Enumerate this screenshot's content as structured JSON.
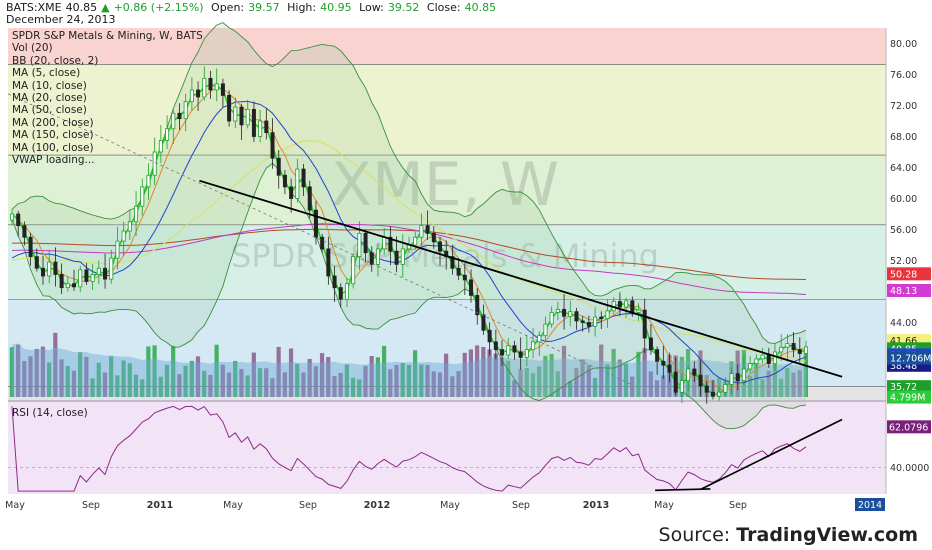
{
  "header": {
    "symbol": "BATS:XME",
    "last": "40.85",
    "change": "+0.86 (+2.15%)",
    "open_label": "Open:",
    "open": "39.57",
    "high_label": "High:",
    "high": "40.95",
    "low_label": "Low:",
    "low": "39.52",
    "close_label": "Close:",
    "close": "40.85",
    "date": "December 24, 2013"
  },
  "legend": [
    "SPDR S&P Metals & Mining, W, BATS",
    "Vol (20)",
    "BB (20, close, 2)",
    "MA (5, close)",
    "MA (10, close)",
    "MA (20, close)",
    "MA (50, close)",
    "MA (200, close)",
    "MA (150, close)",
    "MA (100, close)",
    "VWAP loading..."
  ],
  "watermark": {
    "ticker": "XME, W",
    "name": "SPDR S&P Metals & Mining"
  },
  "rsi_label": "RSI (14, close)",
  "source": {
    "prefix": "Source: ",
    "brand": "TradingView.com"
  },
  "colors": {
    "up": "#1e9e2b",
    "down": "#222222",
    "bb": "#3b8f3b",
    "ma5": "#22cc22",
    "ma20": "#e08a2a",
    "ma50": "#2244cc",
    "ma200": "#b04a2a",
    "ma150": "#c23ac2",
    "ma100": "#d9e060",
    "rsi": "#8a2a8a",
    "trend": "#000000"
  },
  "chart_data": [
    {
      "type": "candlestick",
      "title": "SPDR S&P Metals & Mining, W, BATS",
      "ylim": [
        34,
        82
      ],
      "y_ticks": [
        "80.00",
        "76.00",
        "72.00",
        "68.00",
        "64.00",
        "60.00",
        "56.00",
        "52.00",
        "48.00",
        "44.00"
      ],
      "x_ticks": [
        "May",
        "Sep",
        "2011",
        "May",
        "Sep",
        "2012",
        "May",
        "Sep",
        "2013",
        "May",
        "Sep",
        "2014"
      ],
      "price_bands": [
        {
          "from": 77.3,
          "to": 82,
          "color": "#f8d3d0"
        },
        {
          "from": 65.6,
          "to": 77.3,
          "color": "#edf3d0"
        },
        {
          "from": 56.6,
          "to": 65.6,
          "color": "#dff1d5"
        },
        {
          "from": 47.0,
          "to": 56.6,
          "color": "#d7f0e7"
        },
        {
          "from": 35.72,
          "to": 47.0,
          "color": "#d4e9f3"
        },
        {
          "from": 34,
          "to": 35.72,
          "color": "#e4e4e4"
        }
      ],
      "h_lines": [
        77.3,
        65.6,
        56.6,
        47.0,
        35.72
      ],
      "price_tags": [
        {
          "value": "50.28",
          "y": 50.28,
          "bg": "#e8343a",
          "fg": "#ffffff"
        },
        {
          "value": "48.13",
          "y": 48.13,
          "bg": "#d23bd2",
          "fg": "#ffffff"
        },
        {
          "value": "41.66",
          "y": 41.66,
          "bg": "#f2f27a",
          "fg": "#222222"
        },
        {
          "value": "40.85",
          "y": 40.6,
          "bg": "#1e9e2b",
          "fg": "#ffffff"
        },
        {
          "value": "39.82",
          "y": 39.82,
          "bg": "#2244cc",
          "fg": "#ffffff"
        },
        {
          "value": "38.48",
          "y": 38.48,
          "bg": "#1a1a8a",
          "fg": "#ffffff"
        },
        {
          "value": "35.72",
          "y": 35.72,
          "bg": "#1e9e2b",
          "fg": "#ffffff"
        }
      ],
      "trendline": {
        "from": [
          0.218,
          62.3
        ],
        "to": [
          0.95,
          37.0
        ]
      },
      "dotted_line": {
        "from": [
          0.0,
          73.5
        ],
        "to": [
          0.71,
          36.0
        ]
      },
      "close": [
        58.0,
        56.5,
        55.0,
        52.5,
        51.0,
        50.0,
        51.8,
        50.2,
        48.5,
        49.0,
        48.6,
        50.8,
        49.3,
        50.2,
        51.0,
        49.6,
        52.3,
        54.5,
        55.8,
        57.0,
        59.0,
        61.5,
        63.0,
        66.0,
        67.5,
        69.0,
        71.0,
        70.3,
        72.5,
        74.0,
        73.1,
        75.5,
        74.0,
        74.8,
        73.3,
        70.0,
        71.8,
        69.5,
        71.5,
        68.0,
        70.0,
        68.5,
        65.2,
        63.0,
        61.5,
        60.0,
        63.8,
        61.5,
        58.5,
        55.0,
        53.5,
        50.0,
        48.5,
        47.0,
        49.0,
        52.5,
        55.5,
        53.0,
        51.5,
        53.5,
        55.0,
        53.2,
        51.5,
        53.5,
        54.0,
        55.0,
        56.5,
        55.5,
        54.4,
        53.2,
        52.5,
        51.0,
        50.1,
        49.5,
        47.5,
        45.0,
        43.0,
        41.5,
        40.5,
        39.8,
        41.0,
        40.2,
        39.5,
        40.5,
        41.5,
        42.3,
        43.8,
        45.3,
        45.7,
        44.8,
        45.4,
        44.2,
        44.0,
        43.5,
        44.7,
        44.5,
        45.5,
        46.7,
        46.0,
        46.8,
        45.3,
        45.6,
        42.0,
        40.5,
        39.0,
        38.5,
        37.6,
        35.0,
        36.5,
        38.0,
        37.2,
        35.8,
        35.0,
        34.5,
        35.0,
        36.0,
        37.4,
        36.5,
        38.0,
        38.7,
        39.3,
        39.8,
        38.7,
        40.2,
        40.8,
        41.3,
        40.5,
        40.0,
        40.85
      ],
      "volume_ylim": [
        0,
        18
      ],
      "volume_tags": [
        {
          "value": "12.706M",
          "y": 12.706,
          "bg": "#1a4f9a",
          "fg": "#ffffff"
        },
        {
          "value": "4.799M",
          "y": 4.799,
          "bg": "#2bcc3a",
          "fg": "#ffffff"
        }
      ]
    },
    {
      "type": "line",
      "title": "RSI (14, close)",
      "ylim": [
        22,
        85
      ],
      "y_ticks": [
        "40.0000"
      ],
      "last_value": "62.0796",
      "trendlines": [
        {
          "from": [
            0.737,
            24.5
          ],
          "to": [
            0.8,
            25.5
          ]
        },
        {
          "from": [
            0.79,
            25.5
          ],
          "to": [
            0.95,
            73.0
          ]
        }
      ]
    }
  ]
}
